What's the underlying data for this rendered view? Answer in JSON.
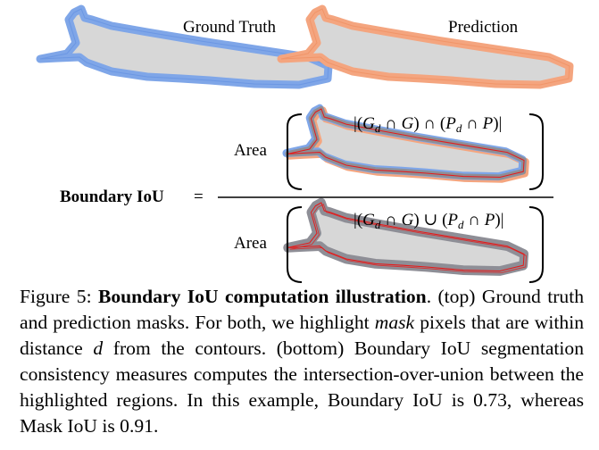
{
  "figure": {
    "top_labels": {
      "ground_truth": "Ground Truth",
      "prediction": "Prediction"
    },
    "equation": {
      "lhs": "Boundary IoU",
      "equals": "=",
      "area_label": "Area",
      "numerator_expr": "|(G_d ∩ G) ∩ (P_d ∩ P)|",
      "denominator_expr": "|(G_d ∩ G) ∪ (P_d ∩ P)|"
    },
    "colors": {
      "ground_truth": "#7fa6e8",
      "prediction": "#f4a57f",
      "mask_fill": "#d7d7d7",
      "intersection": "#8e8e96",
      "contour": "#e41b1b"
    }
  },
  "caption": {
    "prefix": "Figure 5: ",
    "title": "Boundary IoU computation illustration",
    "part1": ". (top) Ground truth and prediction masks. For both, we highlight ",
    "mask_word": "mask",
    "part2": " pixels that are within distance ",
    "d_symbol": "d",
    "part3": " from the contours. (bottom) Boundary IoU segmentation consistency measures computes the intersection-over-union between the highlighted regions.  In this example, Boundary IoU is 0.73, whereas Mask IoU is 0.91."
  }
}
